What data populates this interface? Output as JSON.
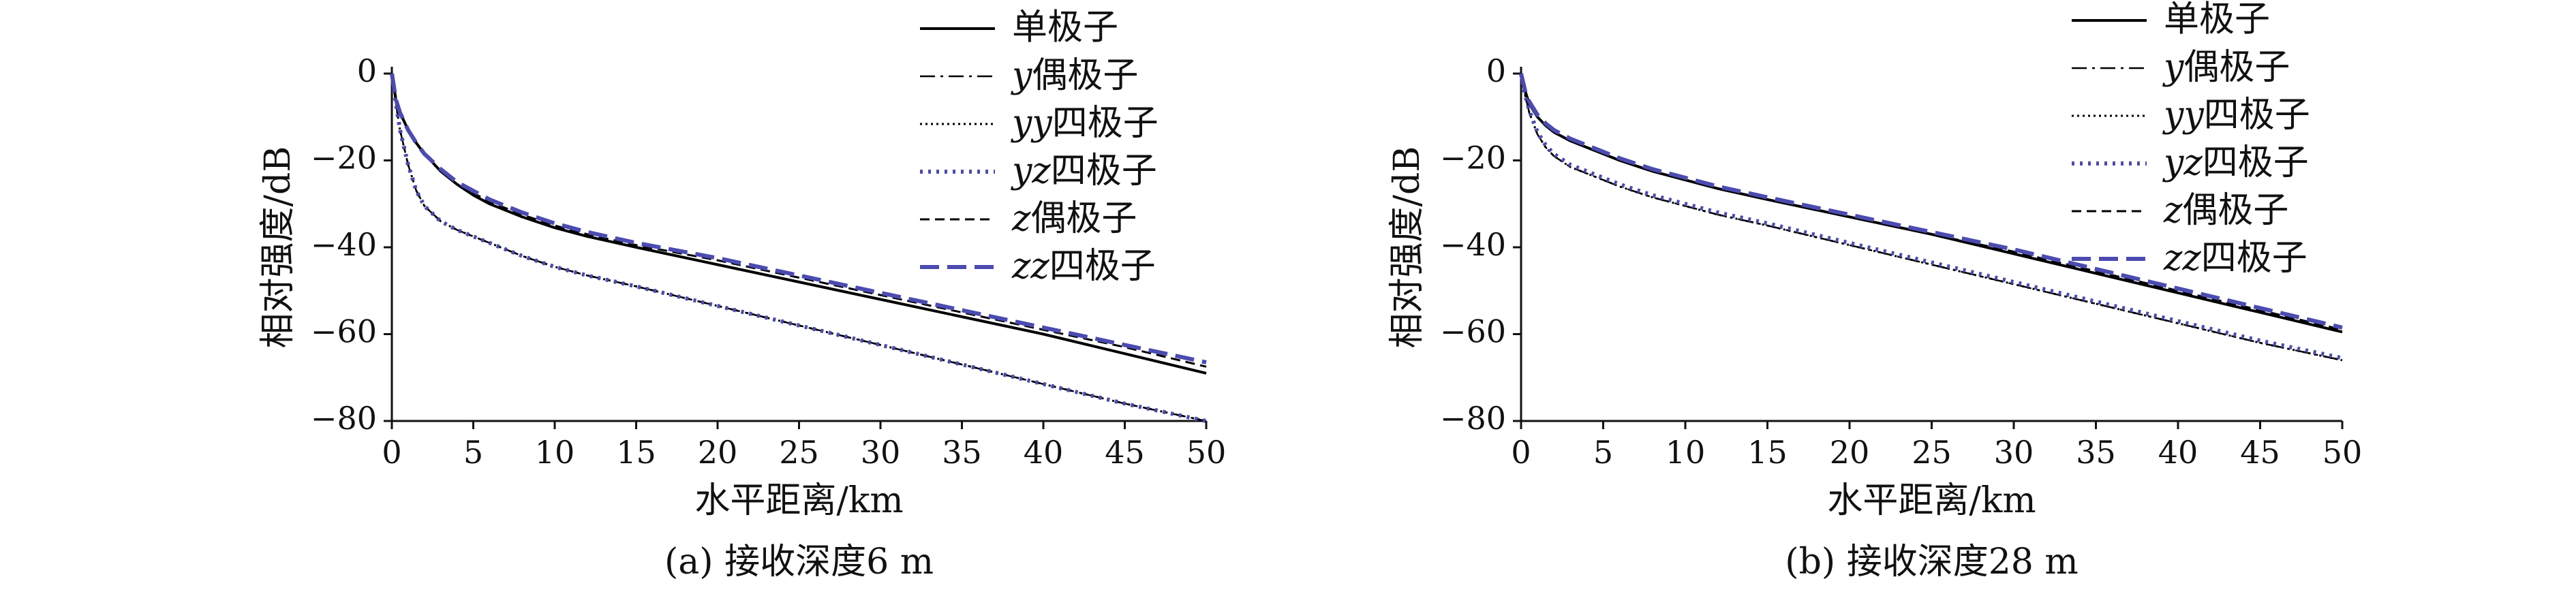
{
  "chart_data": [
    {
      "type": "line",
      "caption": "(a) 接收深度6 m",
      "xlabel": "水平距离/km",
      "ylabel": "相对强度/dB",
      "xlim": [
        0,
        50
      ],
      "ylim": [
        -80,
        0
      ],
      "xticks": [
        0,
        5,
        10,
        15,
        20,
        25,
        30,
        35,
        40,
        45,
        50
      ],
      "yticks": [
        0,
        -20,
        -40,
        -60,
        -80
      ],
      "grid": false,
      "legend_position": "top-right",
      "x": [
        0,
        0.25,
        0.5,
        1,
        1.5,
        2,
        3,
        4,
        5,
        6,
        8,
        10,
        12,
        15,
        20,
        25,
        30,
        35,
        40,
        45,
        50
      ],
      "series": [
        {
          "name": "单极子",
          "color": "#000000",
          "style": "solid",
          "values": [
            0,
            -6,
            -9,
            -13,
            -16,
            -18.5,
            -22.5,
            -25.5,
            -28,
            -30,
            -33,
            -35.5,
            -37.5,
            -40,
            -44,
            -48,
            -52,
            -56,
            -60,
            -64.5,
            -69
          ]
        },
        {
          "name": "y偶极子",
          "color": "#000000",
          "style": "dashdot",
          "values": [
            0,
            -7,
            -13,
            -21,
            -27,
            -30.5,
            -34,
            -36,
            -37.5,
            -39,
            -42,
            -44.5,
            -46.5,
            -49,
            -53.5,
            -58,
            -62.5,
            -67,
            -71.5,
            -76,
            -80
          ]
        },
        {
          "name": "yy四极子",
          "color": "#000000",
          "style": "dotted",
          "values": [
            0,
            -7,
            -13,
            -21,
            -27,
            -30.5,
            -34,
            -36,
            -37.5,
            -39,
            -42,
            -44.5,
            -46.5,
            -49,
            -53.5,
            -58,
            -62.5,
            -67,
            -71.5,
            -76,
            -80
          ]
        },
        {
          "name": "yz四极子",
          "color": "#4b4bb0",
          "style": "dotted",
          "values": [
            0,
            -7,
            -13,
            -21,
            -27,
            -30.5,
            -34,
            -36,
            -37.5,
            -39,
            -42,
            -44.5,
            -46.5,
            -49,
            -53.5,
            -58,
            -62.5,
            -67,
            -71.5,
            -76,
            -80
          ]
        },
        {
          "name": "z偶极子",
          "color": "#000000",
          "style": "dashed",
          "values": [
            0,
            -6,
            -9,
            -13,
            -16,
            -18.5,
            -22.5,
            -25.5,
            -27.5,
            -29.5,
            -32.5,
            -35,
            -37,
            -39.5,
            -43,
            -47,
            -51,
            -55,
            -59,
            -63,
            -67.5
          ]
        },
        {
          "name": "zz四极子",
          "color": "#4b4bb0",
          "style": "longdash",
          "values": [
            0,
            -6,
            -9,
            -13,
            -16,
            -18.5,
            -22,
            -25,
            -27,
            -29,
            -32,
            -34.5,
            -36.5,
            -39,
            -42.5,
            -46.5,
            -50.5,
            -54.5,
            -58.5,
            -62.5,
            -66.5
          ]
        }
      ]
    },
    {
      "type": "line",
      "caption": "(b) 接收深度28 m",
      "xlabel": "水平距离/km",
      "ylabel": "相对强度/dB",
      "xlim": [
        0,
        50
      ],
      "ylim": [
        -80,
        0
      ],
      "xticks": [
        0,
        5,
        10,
        15,
        20,
        25,
        30,
        35,
        40,
        45,
        50
      ],
      "yticks": [
        0,
        -20,
        -40,
        -60,
        -80
      ],
      "grid": false,
      "legend_position": "top-right",
      "x": [
        0,
        0.25,
        0.5,
        1,
        1.5,
        2,
        3,
        4,
        5,
        6,
        8,
        10,
        12,
        15,
        20,
        25,
        30,
        35,
        40,
        45,
        50
      ],
      "series": [
        {
          "name": "单极子",
          "color": "#000000",
          "style": "solid",
          "values": [
            0,
            -4,
            -7,
            -10,
            -12,
            -13.5,
            -15.5,
            -17,
            -18.5,
            -20,
            -22.5,
            -24.5,
            -26.5,
            -29,
            -33,
            -37,
            -41.5,
            -46,
            -50.5,
            -55,
            -59.5
          ]
        },
        {
          "name": "y偶极子",
          "color": "#000000",
          "style": "dashdot",
          "values": [
            0,
            -5,
            -9,
            -14,
            -17,
            -19,
            -21.5,
            -23,
            -24.5,
            -26,
            -28.5,
            -30.5,
            -32.5,
            -35,
            -39.5,
            -44,
            -48.5,
            -53,
            -57.5,
            -62,
            -66
          ]
        },
        {
          "name": "yy四极子",
          "color": "#000000",
          "style": "dotted",
          "values": [
            0,
            -5,
            -9,
            -14,
            -17,
            -19,
            -21.5,
            -23,
            -24.5,
            -26,
            -28.5,
            -30.5,
            -32.5,
            -35,
            -39.5,
            -44,
            -48.5,
            -53,
            -57.5,
            -62,
            -66
          ]
        },
        {
          "name": "yz四极子",
          "color": "#4b4bb0",
          "style": "dotted",
          "values": [
            0,
            -5,
            -8.5,
            -13.5,
            -16.5,
            -18.5,
            -21,
            -22.5,
            -24,
            -25.5,
            -28,
            -30,
            -32,
            -34.5,
            -39,
            -43.5,
            -48,
            -52.5,
            -57,
            -61.5,
            -65.5
          ]
        },
        {
          "name": "z偶极子",
          "color": "#000000",
          "style": "dashed",
          "values": [
            0,
            -4,
            -7,
            -10,
            -12,
            -13.5,
            -15.5,
            -17,
            -18.5,
            -20,
            -22.5,
            -24.5,
            -26.5,
            -29,
            -33,
            -37,
            -41,
            -45.5,
            -50,
            -54.5,
            -59
          ]
        },
        {
          "name": "zz四极子",
          "color": "#4b4bb0",
          "style": "longdash",
          "values": [
            0,
            -4,
            -6.5,
            -9.5,
            -11.5,
            -13,
            -15,
            -16.5,
            -18,
            -19.5,
            -22,
            -24,
            -26,
            -28.5,
            -32.5,
            -36.5,
            -40.5,
            -45,
            -49.5,
            -54,
            -58.5
          ]
        }
      ]
    }
  ]
}
